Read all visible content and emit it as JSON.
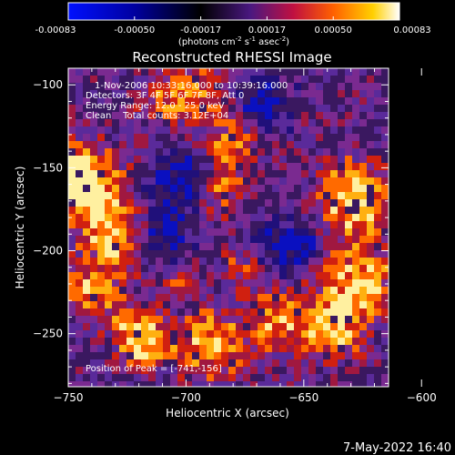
{
  "colorbar": {
    "tick_labels": [
      "-0.00083",
      "-0.00050",
      "-0.00017",
      "0.00017",
      "0.00050",
      "0.00083"
    ],
    "units_text": "(photons cm",
    "units_sup1": "-2",
    "units_s": " s",
    "units_sup2": "-1",
    "units_asec": " asec",
    "units_sup3": "-2",
    "units_close": ")",
    "range": [
      -0.00083,
      0.00083
    ],
    "colors": [
      "#0000ff",
      "#000000",
      "#5a1fa0",
      "#c01030",
      "#ff5000",
      "#ffb000",
      "#ffffff"
    ]
  },
  "chart_data": {
    "type": "heatmap",
    "title": "Reconstructed RHESSI Image",
    "xlabel": "Heliocentric X (arcsec)",
    "ylabel": "Heliocentric Y (arcsec)",
    "xlim": [
      -750,
      -614
    ],
    "ylim": [
      -282,
      -90
    ],
    "x_ticks": [
      -750,
      -700,
      -650,
      -600
    ],
    "x_tick_labels": [
      "−750",
      "−700",
      "−650",
      "−600"
    ],
    "y_ticks": [
      -100,
      -150,
      -200,
      -250
    ],
    "y_tick_labels": [
      "−100",
      "−150",
      "−200",
      "−250"
    ],
    "info_lines": [
      "1-Nov-2006 10:33:16.000 to 10:39:16.000",
      "Detectors: 3F 4F 5F 6F 7F 8F, Att 0",
      "Energy Range: 12.0 - 25.0 keV",
      "Clean    Total counts: 3.12E+04"
    ],
    "peak_text": "Position of Peak = [-741,-156]",
    "peak": [
      -741,
      -156
    ],
    "grid": false
  },
  "footer": {
    "timestamp": "7-May-2022 16:40"
  }
}
